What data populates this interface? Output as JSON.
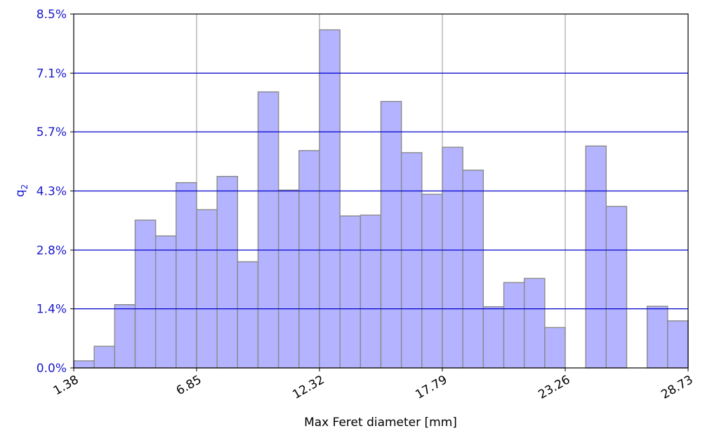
{
  "chart_data": {
    "type": "bar",
    "title": "",
    "xlabel": "Max Feret diameter [mm]",
    "ylabel": "q",
    "ylabel_subscript": "2",
    "x_range": [
      1.38,
      28.73
    ],
    "ylim": [
      0.0,
      8.5
    ],
    "x_ticks": [
      "1.38",
      "6.85",
      "12.32",
      "17.79",
      "23.26",
      "28.73"
    ],
    "y_ticks": [
      "0.0%",
      "1.4%",
      "2.8%",
      "4.3%",
      "5.7%",
      "7.1%",
      "8.5%"
    ],
    "y_tick_values": [
      0.0,
      1.42,
      2.83,
      4.25,
      5.67,
      7.08,
      8.5
    ],
    "grid": {
      "horizontal": true,
      "vertical": true
    },
    "bin_count": 30,
    "values": [
      0.17,
      0.52,
      1.52,
      3.55,
      3.17,
      4.45,
      3.8,
      4.6,
      2.55,
      6.63,
      4.27,
      5.22,
      8.12,
      3.65,
      3.67,
      6.4,
      5.17,
      4.17,
      5.3,
      4.75,
      1.47,
      2.05,
      2.15,
      0.97,
      0.0,
      5.33,
      3.88,
      0.0,
      1.48,
      1.13
    ],
    "colors": {
      "bar_fill": "#b3b3ff",
      "bar_edge": "#8a8a8a",
      "y_grid": "#0000cc",
      "x_grid": "#a8a8a8",
      "y_axis_text": "#1a1acc",
      "frame": "#000000"
    }
  }
}
